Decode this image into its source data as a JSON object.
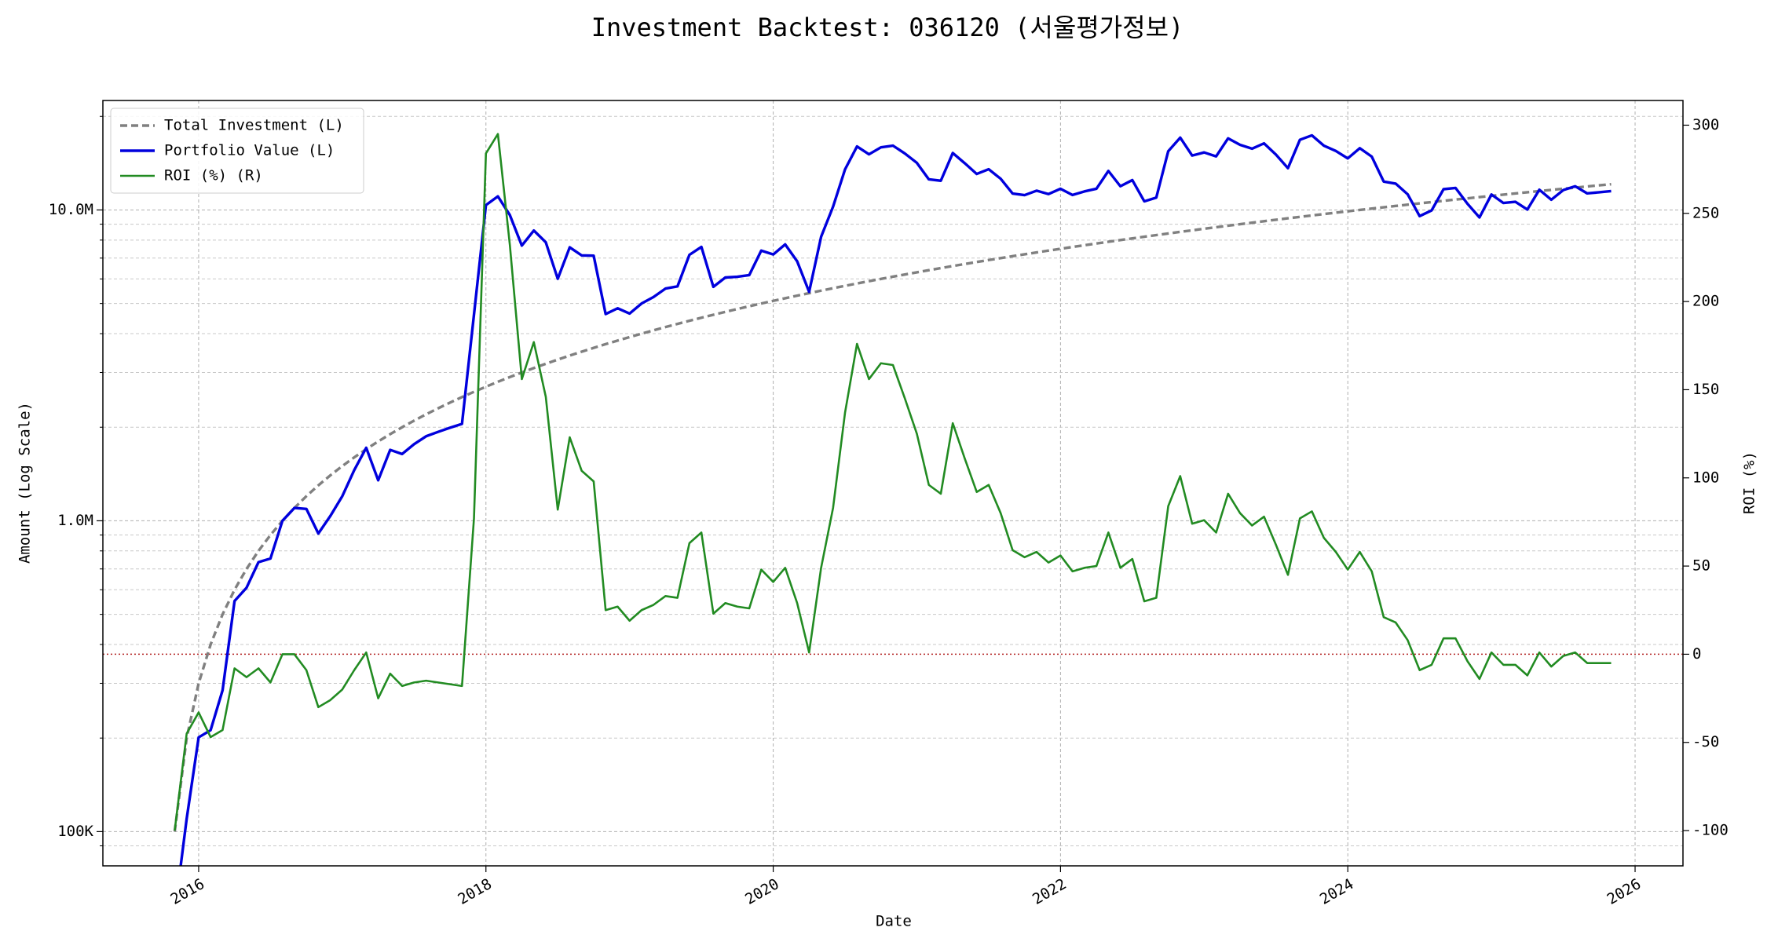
{
  "chart_data": {
    "type": "line",
    "title": "Investment Backtest: 036120 (서울평가정보)",
    "xlabel": "Date",
    "ylabel": "Amount (Log Scale)",
    "y2label": "ROI (%)",
    "ylabel_color": "#0000cd",
    "y2label_color": "#228b22",
    "x": [
      "2015-11",
      "2015-12",
      "2016-01",
      "2016-02",
      "2016-03",
      "2016-04",
      "2016-05",
      "2016-06",
      "2016-07",
      "2016-08",
      "2016-09",
      "2016-10",
      "2016-11",
      "2016-12",
      "2017-01",
      "2017-02",
      "2017-03",
      "2017-04",
      "2017-05",
      "2017-06",
      "2017-07",
      "2017-08",
      "2017-09",
      "2017-10",
      "2017-11",
      "2017-12",
      "2018-01",
      "2018-02",
      "2018-03",
      "2018-04",
      "2018-05",
      "2018-06",
      "2018-07",
      "2018-08",
      "2018-09",
      "2018-10",
      "2018-11",
      "2018-12",
      "2019-01",
      "2019-02",
      "2019-03",
      "2019-04",
      "2019-05",
      "2019-06",
      "2019-07",
      "2019-08",
      "2019-09",
      "2019-10",
      "2019-11",
      "2019-12",
      "2020-01",
      "2020-02",
      "2020-03",
      "2020-04",
      "2020-05",
      "2020-06",
      "2020-07",
      "2020-08",
      "2020-09",
      "2020-10",
      "2020-11",
      "2020-12",
      "2021-01",
      "2021-02",
      "2021-03",
      "2021-04",
      "2021-05",
      "2021-06",
      "2021-07",
      "2021-08",
      "2021-09",
      "2021-10",
      "2021-11",
      "2021-12",
      "2022-01",
      "2022-02",
      "2022-03",
      "2022-04",
      "2022-05",
      "2022-06",
      "2022-07",
      "2022-08",
      "2022-09",
      "2022-10",
      "2022-11",
      "2022-12",
      "2023-01",
      "2023-02",
      "2023-03",
      "2023-04",
      "2023-05",
      "2023-06",
      "2023-07",
      "2023-08",
      "2023-09",
      "2023-10",
      "2023-11",
      "2023-12",
      "2024-01",
      "2024-02",
      "2024-03",
      "2024-04",
      "2024-05",
      "2024-06",
      "2024-07",
      "2024-08",
      "2024-09",
      "2024-10",
      "2024-11",
      "2024-12",
      "2025-01",
      "2025-02",
      "2025-03",
      "2025-04",
      "2025-05",
      "2025-06",
      "2025-07",
      "2025-08",
      "2025-09",
      "2025-10",
      "2025-11"
    ],
    "xlim": [
      "2015-05",
      "2026-05"
    ],
    "xticks": [
      {
        "value": "2016-01",
        "label": "2016"
      },
      {
        "value": "2018-01",
        "label": "2018"
      },
      {
        "value": "2020-01",
        "label": "2020"
      },
      {
        "value": "2022-01",
        "label": "2022"
      },
      {
        "value": "2024-01",
        "label": "2024"
      },
      {
        "value": "2026-01",
        "label": "2026"
      }
    ],
    "ylog": true,
    "ylim": [
      77600,
      22500000
    ],
    "yticks": [
      {
        "value": 100000,
        "label": "100K"
      },
      {
        "value": 1000000,
        "label": "1.0M"
      },
      {
        "value": 10000000,
        "label": "10.0M"
      }
    ],
    "yminorticks": [
      90000,
      200000,
      300000,
      400000,
      500000,
      600000,
      700000,
      800000,
      900000,
      2000000,
      3000000,
      4000000,
      5000000,
      6000000,
      7000000,
      8000000,
      9000000,
      20000000
    ],
    "y2lim": [
      -120,
      314
    ],
    "y2ticks": [
      -100,
      -50,
      0,
      50,
      100,
      150,
      200,
      250,
      300
    ],
    "grid": true,
    "legend": "upper left",
    "hline": {
      "value": 0,
      "axis": "y2",
      "color": "#b22222"
    },
    "series": [
      {
        "name": "Total Investment (L)",
        "color": "#808080",
        "dash": true,
        "axis": "y",
        "values": [
          100000,
          200000,
          300000,
          400000,
          500000,
          600000,
          700000,
          800000,
          900000,
          1000000,
          1100000,
          1200000,
          1300000,
          1400000,
          1500000,
          1600000,
          1700000,
          1800000,
          1900000,
          2000000,
          2100000,
          2200000,
          2300000,
          2400000,
          2500000,
          2600000,
          2700000,
          2800000,
          2900000,
          3000000,
          3100000,
          3200000,
          3300000,
          3400000,
          3500000,
          3600000,
          3700000,
          3800000,
          3900000,
          4000000,
          4100000,
          4200000,
          4300000,
          4400000,
          4500000,
          4600000,
          4700000,
          4800000,
          4900000,
          5000000,
          5100000,
          5200000,
          5300000,
          5400000,
          5500000,
          5600000,
          5700000,
          5800000,
          5900000,
          6000000,
          6100000,
          6200000,
          6300000,
          6400000,
          6500000,
          6600000,
          6700000,
          6800000,
          6900000,
          7000000,
          7100000,
          7200000,
          7300000,
          7400000,
          7500000,
          7600000,
          7700000,
          7800000,
          7900000,
          8000000,
          8100000,
          8200000,
          8300000,
          8400000,
          8500000,
          8600000,
          8700000,
          8800000,
          8900000,
          9000000,
          9100000,
          9200000,
          9300000,
          9400000,
          9500000,
          9600000,
          9700000,
          9800000,
          9900000,
          10000000,
          10100000,
          10200000,
          10300000,
          10400000,
          10500000,
          10600000,
          10700000,
          10800000,
          10900000,
          11000000,
          11100000,
          11200000,
          11300000,
          11400000,
          11500000,
          11600000,
          11700000,
          11800000,
          11900000,
          12000000,
          12100000
        ]
      },
      {
        "name": "Portfolio Value (L)",
        "color": "#0000dd",
        "dash": false,
        "axis": "y",
        "values": [
          0,
          110000,
          201000,
          212000,
          285000,
          552000,
          609000,
          736000,
          756000,
          1000000,
          1100000,
          1092000,
          910000,
          1036000,
          1200000,
          1456000,
          1717000,
          1350000,
          1691000,
          1640000,
          1764000,
          1870000,
          1932000,
          1992000,
          2050000,
          4602000,
          10368000,
          11060000,
          9628000,
          7680000,
          8587000,
          7872000,
          6006000,
          7582000,
          7140000,
          7128000,
          4625000,
          4826000,
          4641000,
          5000000,
          5248000,
          5586000,
          5676000,
          7172000,
          7605000,
          5658000,
          6063000,
          6096000,
          6174000,
          7400000,
          7191000,
          7748000,
          6837000,
          5454000,
          8195000,
          10248000,
          13509000,
          16008000,
          15104000,
          15900000,
          16104000,
          15190000,
          14175000,
          12544000,
          12415000,
          15246000,
          14137000,
          13056000,
          13524000,
          12600000,
          11289000,
          11160000,
          11534000,
          11248000,
          11700000,
          11172000,
          11473000,
          11700000,
          13351000,
          11920000,
          12474000,
          10660000,
          10956000,
          15456000,
          17085000,
          14964000,
          15312000,
          14872000,
          16999000,
          16200000,
          15743000,
          16376000,
          15066000,
          13630000,
          16815000,
          17376000,
          16102000,
          15484000,
          14652000,
          15800000,
          14847000,
          12342000,
          12154000,
          11232000,
          9555000,
          9964000,
          11663000,
          11772000,
          10464000,
          9460000,
          11211000,
          10528000,
          10622000,
          10032000,
          11615000,
          10788000,
          11583000,
          11918000,
          11305000,
          11400000,
          11495000
        ]
      },
      {
        "name": "ROI (%) (R)",
        "color": "#228b22",
        "dash": false,
        "axis": "y2",
        "values": [
          -100,
          -45,
          -33,
          -47,
          -43,
          -8,
          -13,
          -8,
          -16,
          0,
          0,
          -9,
          -30,
          -26,
          -20,
          -9,
          1,
          -25,
          -11,
          -18,
          -16,
          -15,
          -16,
          -17,
          -18,
          77,
          284,
          295,
          232,
          156,
          177,
          146,
          82,
          123,
          104,
          98,
          25,
          27,
          19,
          25,
          28,
          33,
          32,
          63,
          69,
          23,
          29,
          27,
          26,
          48,
          41,
          49,
          29,
          1,
          49,
          83,
          137,
          176,
          156,
          165,
          164,
          145,
          125,
          96,
          91,
          131,
          111,
          92,
          96,
          80,
          59,
          55,
          58,
          52,
          56,
          47,
          49,
          50,
          69,
          49,
          54,
          30,
          32,
          84,
          101,
          74,
          76,
          69,
          91,
          80,
          73,
          78,
          62,
          45,
          77,
          81,
          66,
          58,
          48,
          58,
          47,
          21,
          18,
          8,
          -9,
          -6,
          9,
          9,
          -4,
          -14,
          1,
          -6,
          -6,
          -12,
          1,
          -7,
          -1,
          1,
          -5,
          -5,
          -5
        ]
      }
    ]
  }
}
